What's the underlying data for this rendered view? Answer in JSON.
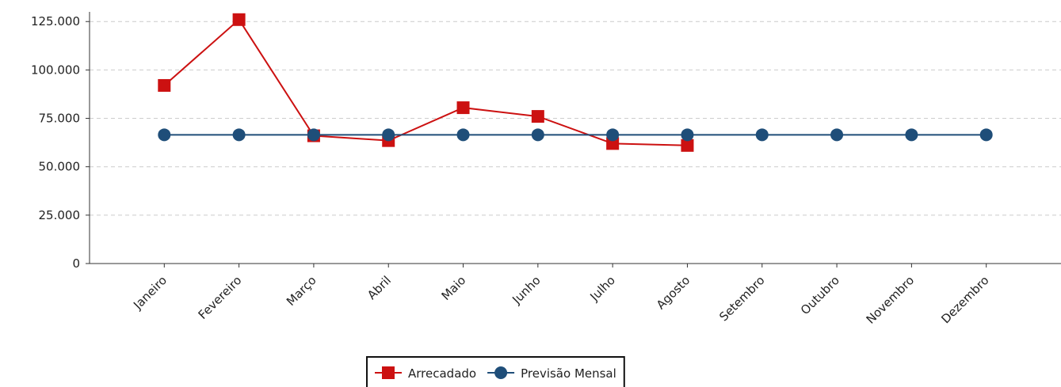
{
  "chart_data": {
    "type": "line",
    "categories": [
      "Janeiro",
      "Fevereiro",
      "Março",
      "Abril",
      "Maio",
      "Junho",
      "Julho",
      "Agosto",
      "Setembro",
      "Outubro",
      "Novembro",
      "Dezembro"
    ],
    "series": [
      {
        "name": "Arrecadado",
        "color": "#cc1111",
        "marker": "square",
        "values": [
          92000,
          126000,
          66000,
          63500,
          80500,
          76000,
          62000,
          61000,
          null,
          null,
          null,
          null
        ]
      },
      {
        "name": "Previsão Mensal",
        "color": "#1f4e79",
        "marker": "circle",
        "values": [
          66500,
          66500,
          66500,
          66500,
          66500,
          66500,
          66500,
          66500,
          66500,
          66500,
          66500,
          66500
        ]
      }
    ],
    "ylim": [
      0,
      130000
    ],
    "yticks": [
      0,
      {
        "value": 25000,
        "label": "25.000"
      },
      {
        "value": 50000,
        "label": "50.000"
      },
      {
        "value": 75000,
        "label": "75.000"
      },
      {
        "value": 100000,
        "label": "100.000"
      },
      {
        "value": 125000,
        "label": "125.000"
      }
    ],
    "grid": true,
    "legend": "bottom"
  }
}
